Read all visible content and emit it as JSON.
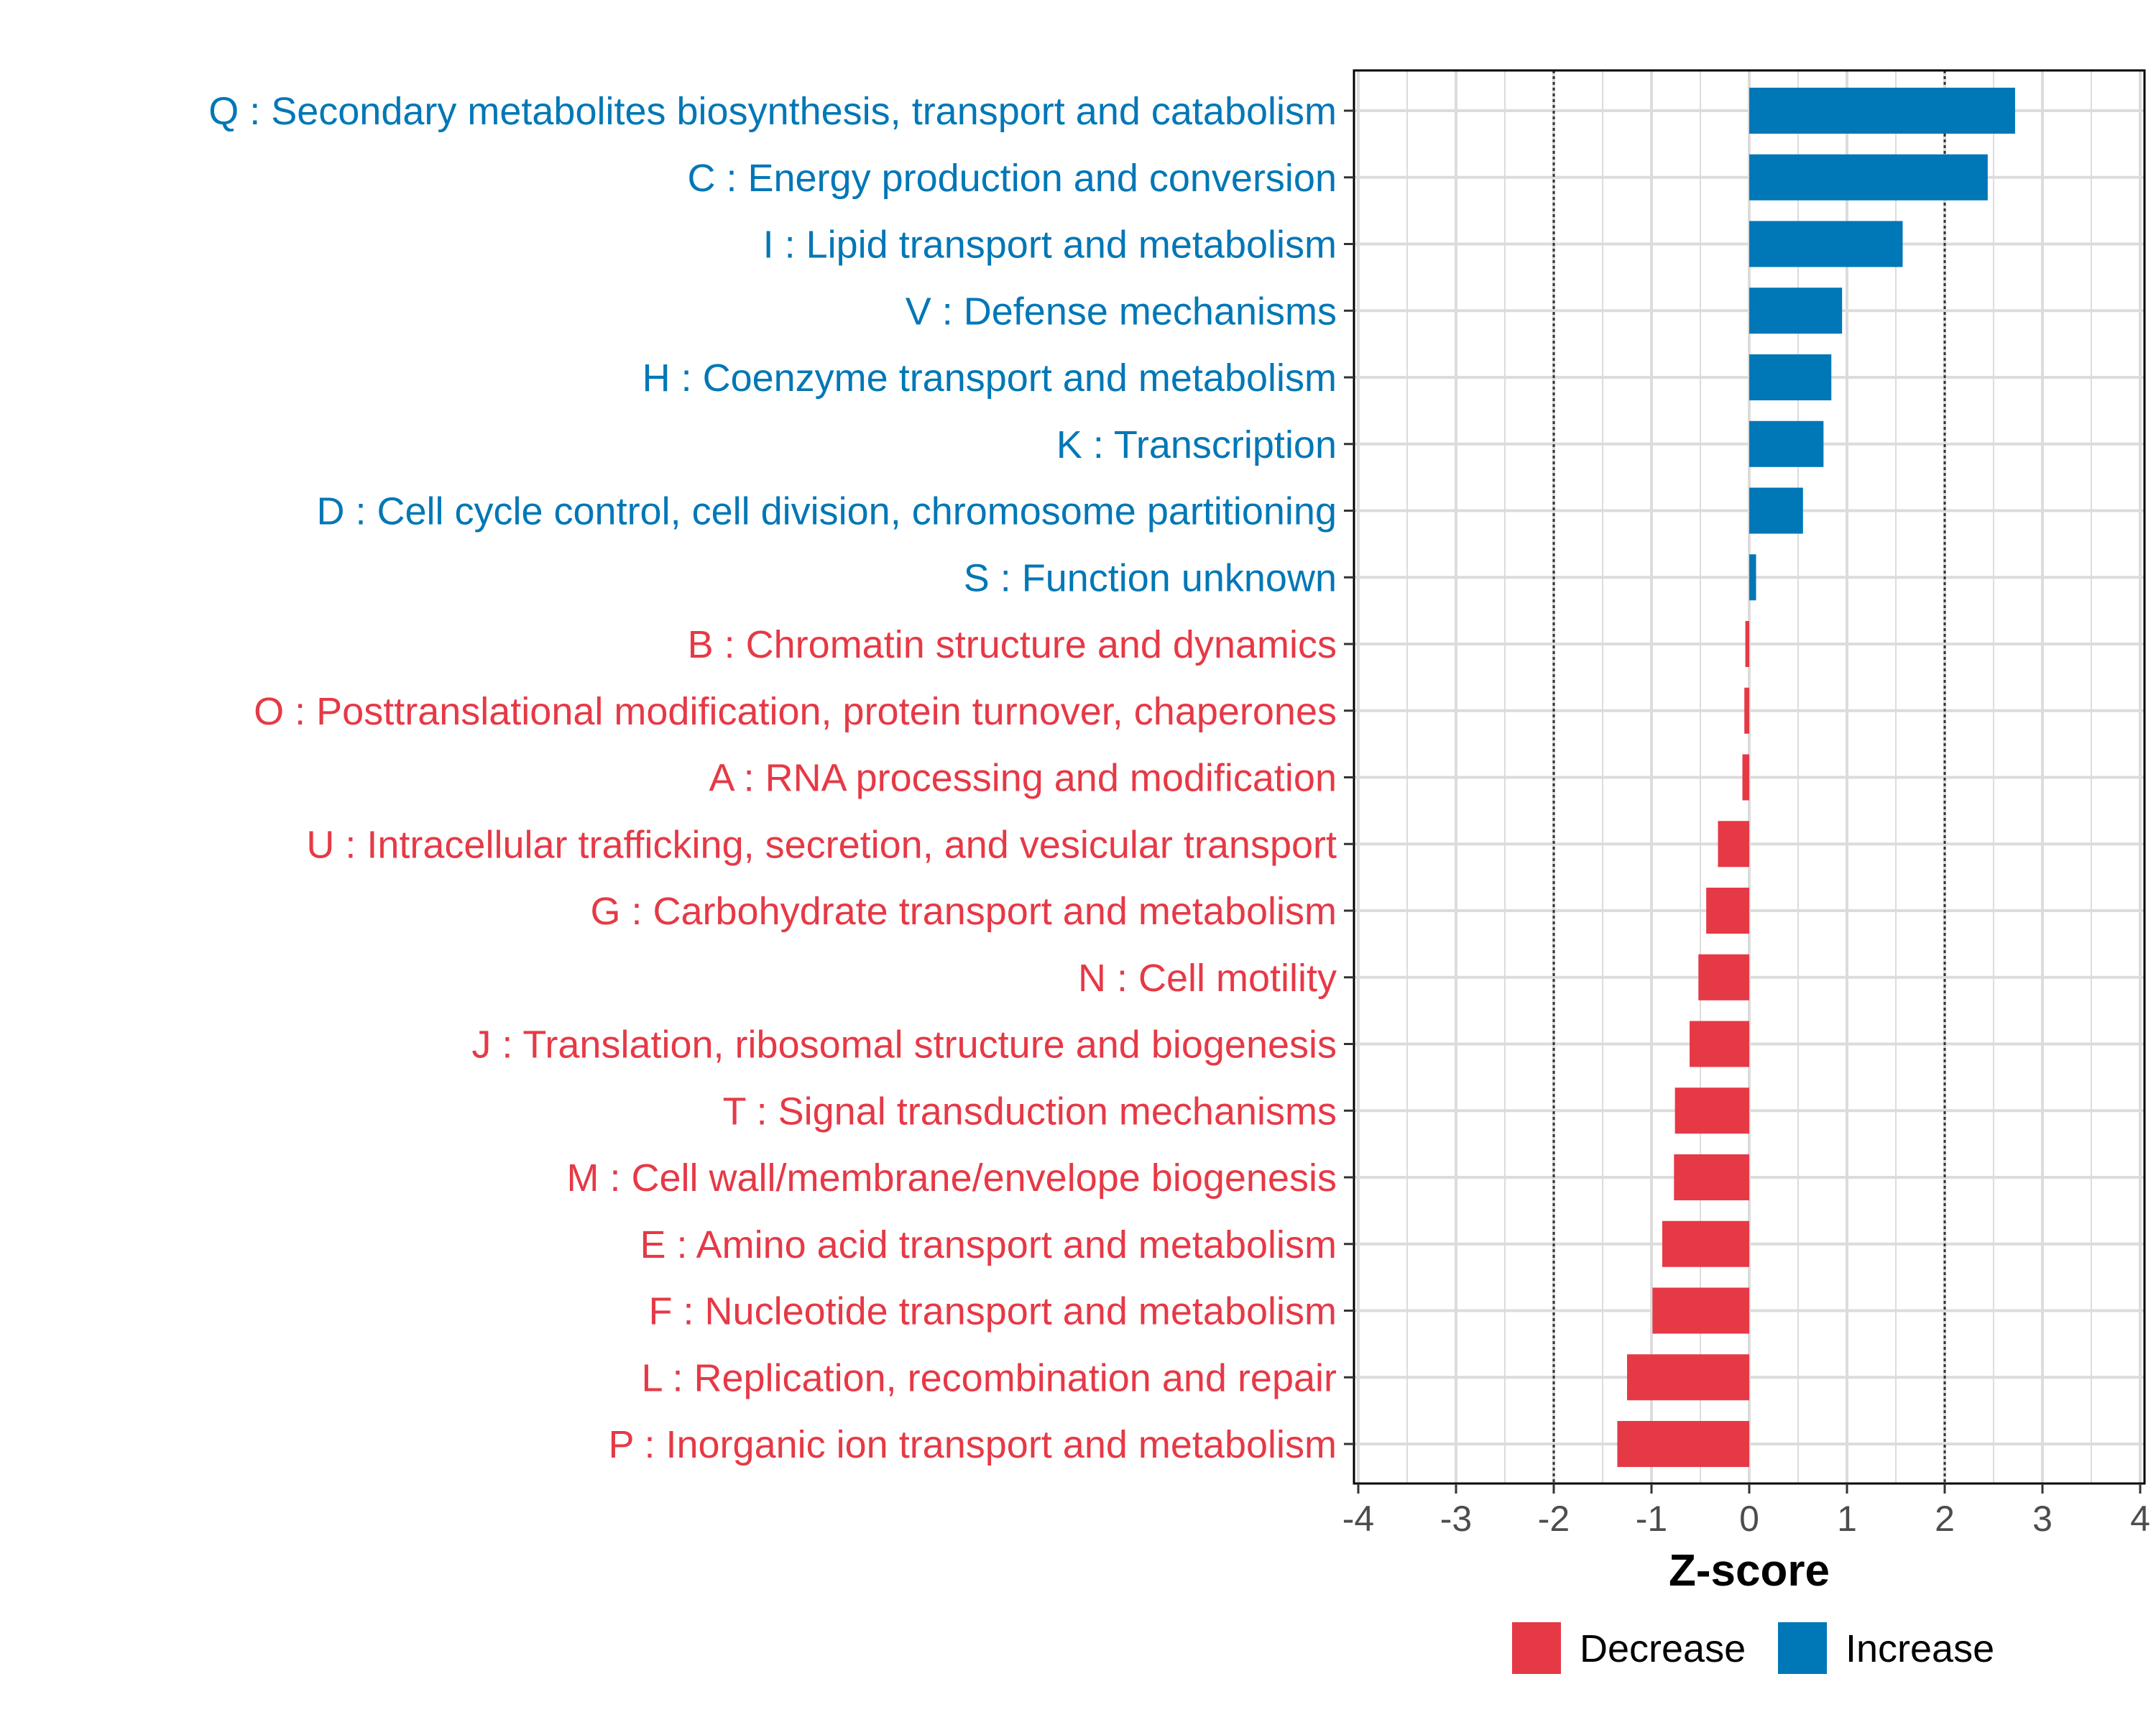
{
  "chart_data": {
    "type": "bar",
    "orientation": "horizontal",
    "title": "",
    "xlabel": "Z-score",
    "ylabel": "",
    "xlim": [
      -4,
      4
    ],
    "xticks": [
      -4,
      -3,
      -2,
      -1,
      0,
      1,
      2,
      3,
      4
    ],
    "threshold_lines": [
      -2,
      2
    ],
    "grid": true,
    "legend_position": "bottom",
    "colors": {
      "Decrease": "#E63946",
      "Increase": "#0077B6"
    },
    "legend": [
      {
        "label": "Decrease",
        "color": "#E63946"
      },
      {
        "label": "Increase",
        "color": "#0077B6"
      }
    ],
    "categories": [
      "Q : Secondary metabolites biosynthesis, transport and catabolism",
      "C : Energy production and conversion",
      "I : Lipid transport and metabolism",
      "V : Defense mechanisms",
      "H : Coenzyme transport and metabolism",
      "K : Transcription",
      "D : Cell cycle control, cell division, chromosome partitioning",
      "S : Function unknown",
      "B : Chromatin structure and dynamics",
      "O : Posttranslational modification, protein turnover, chaperones",
      "A : RNA processing and modification",
      "U : Intracellular trafficking, secretion, and vesicular transport",
      "G : Carbohydrate transport and metabolism",
      "N : Cell motility",
      "J : Translation, ribosomal structure and biogenesis",
      "T : Signal transduction mechanisms",
      "M : Cell wall/membrane/envelope biogenesis",
      "E : Amino acid transport and metabolism",
      "F : Nucleotide transport and metabolism",
      "L : Replication, recombination and repair",
      "P : Inorganic ion transport and metabolism"
    ],
    "values": [
      2.72,
      2.44,
      1.57,
      0.95,
      0.84,
      0.76,
      0.55,
      0.07,
      -0.04,
      -0.05,
      -0.07,
      -0.32,
      -0.44,
      -0.52,
      -0.61,
      -0.76,
      -0.77,
      -0.89,
      -0.99,
      -1.25,
      -1.35
    ]
  }
}
